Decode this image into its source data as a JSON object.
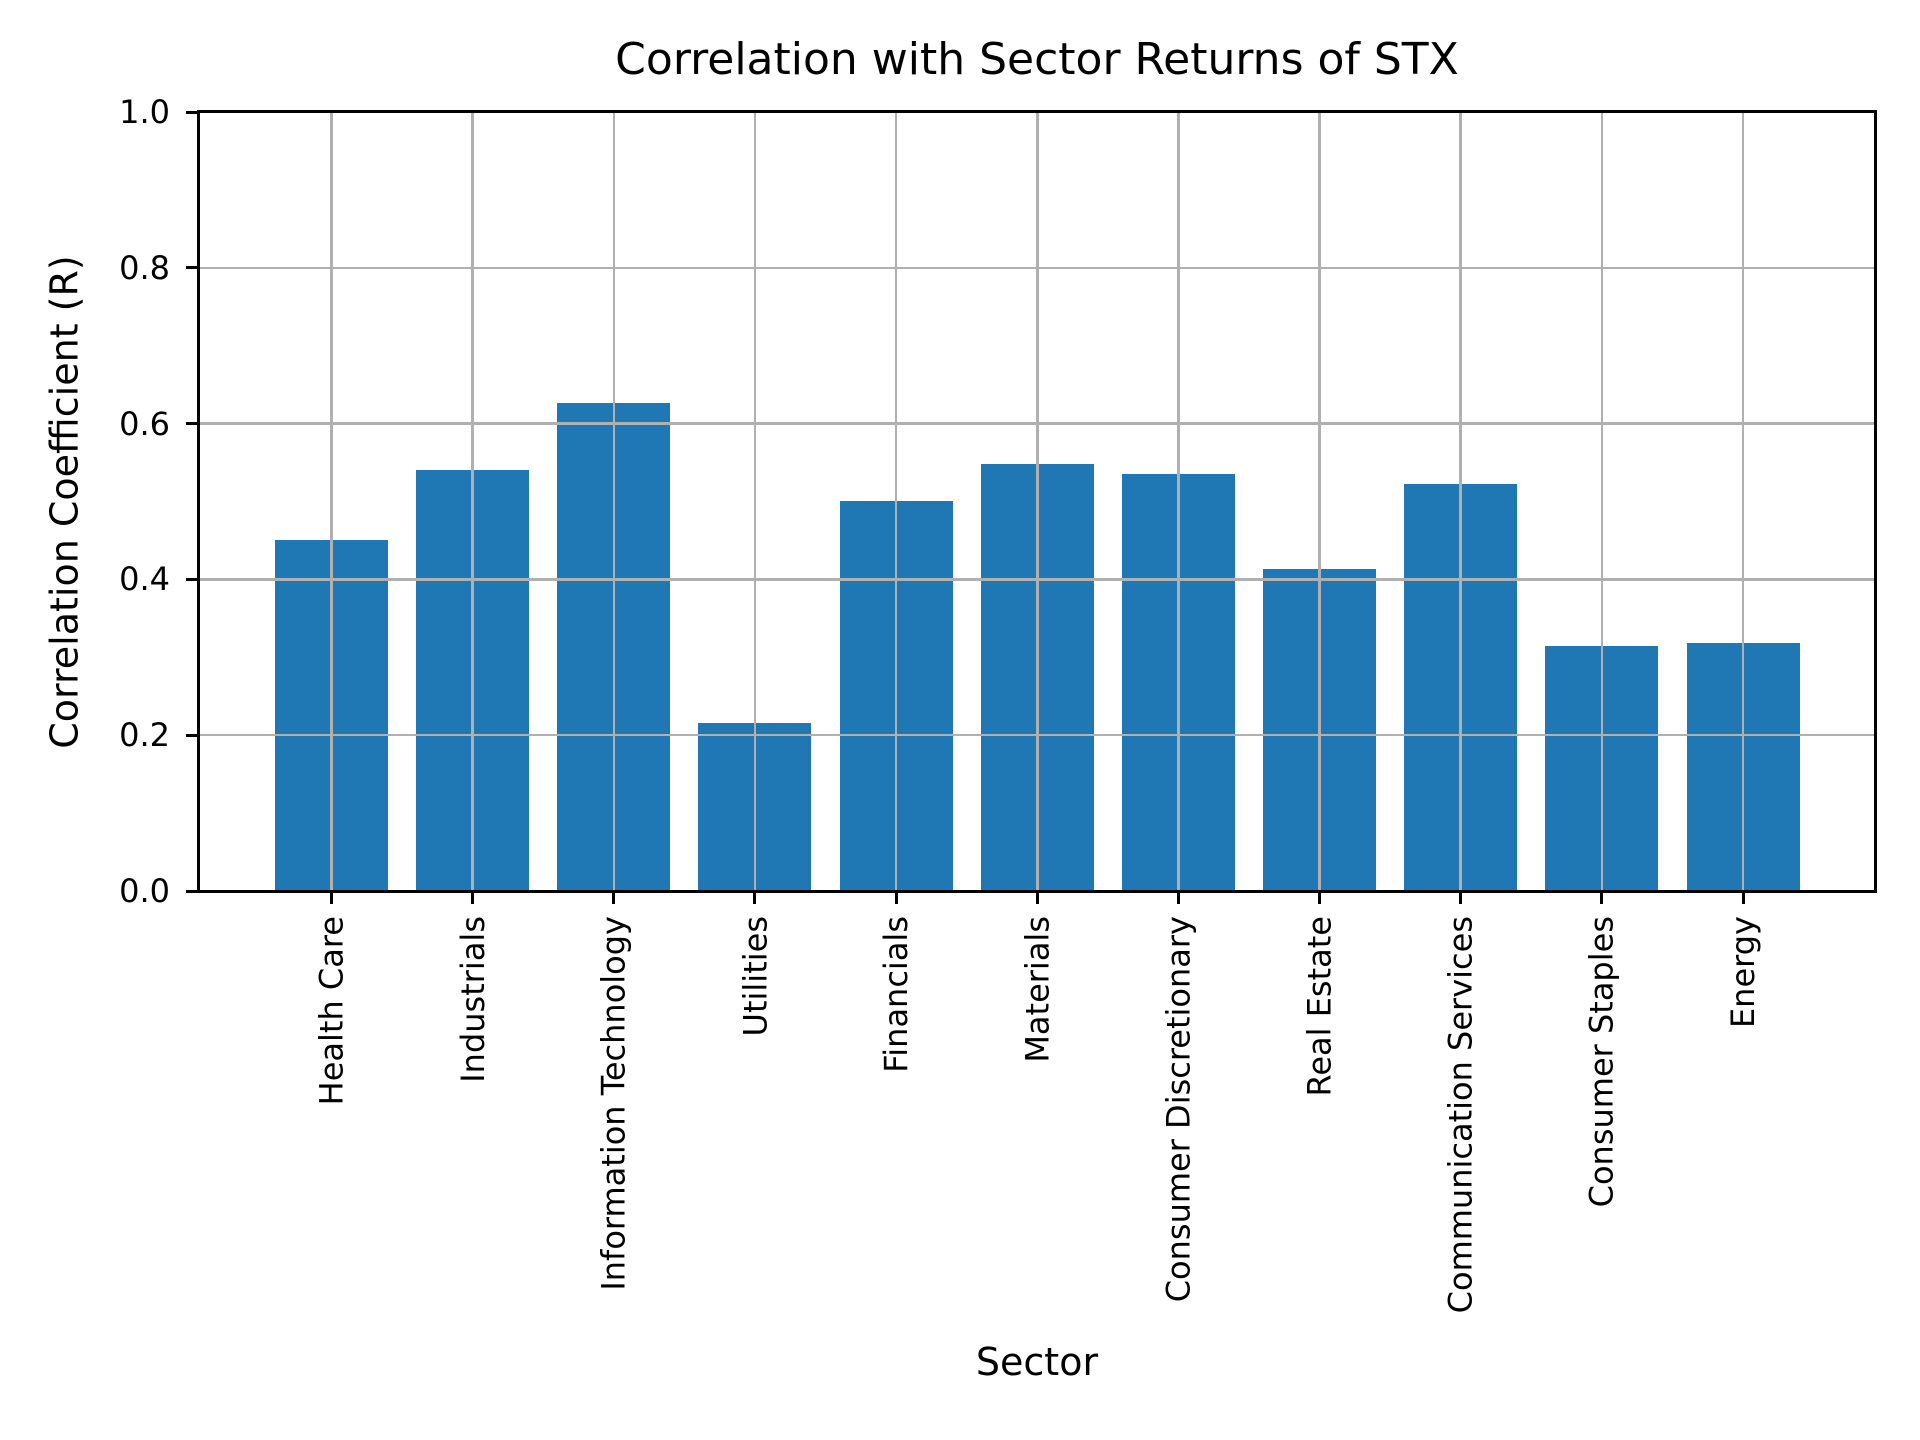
{
  "chart_data": {
    "type": "bar",
    "title": "Correlation with Sector Returns of STX",
    "xlabel": "Sector",
    "ylabel": "Correlation Coefficient (R)",
    "categories": [
      "Health Care",
      "Industrials",
      "Information Technology",
      "Utilities",
      "Financials",
      "Materials",
      "Consumer Discretionary",
      "Real Estate",
      "Communication Services",
      "Consumer Staples",
      "Energy"
    ],
    "values": [
      0.451,
      0.54,
      0.626,
      0.216,
      0.501,
      0.548,
      0.535,
      0.413,
      0.523,
      0.315,
      0.318
    ],
    "ylim": [
      0.0,
      1.0
    ],
    "ytick_values": [
      0.0,
      0.2,
      0.4,
      0.6,
      0.8,
      1.0
    ],
    "ytick_labels": [
      "0.0",
      "0.2",
      "0.4",
      "0.6",
      "0.8",
      "1.0"
    ],
    "grid": true,
    "grid_above_bars": true,
    "legend_position": "none",
    "bar_color": "#1f77b4",
    "grid_color": "#b0b0b0",
    "axis_color": "#000000",
    "background_color": "#ffffff",
    "xtick_rotation_deg": 90
  }
}
